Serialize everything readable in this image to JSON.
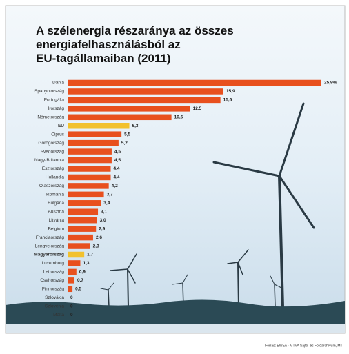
{
  "chart_data": {
    "type": "bar",
    "title": [
      "A szélenergia részaránya az összes",
      "energiafelhasználásból az",
      "EU-tagállamaiban (2011)"
    ],
    "categories": [
      "Dánia",
      "Spanyolország",
      "Portugália",
      "Írország",
      "Németország",
      "EU",
      "Ciprus",
      "Görögország",
      "Svédország",
      "Nagy-Britannia",
      "Észtország",
      "Hollandia",
      "Olaszország",
      "Románia",
      "Bulgária",
      "Ausztria",
      "Litvánia",
      "Belgium",
      "Franciaország",
      "Lengyelország",
      "Magyarország",
      "Luxemburg",
      "Lettország",
      "Csehország",
      "Finnország",
      "Szlovákia",
      "Szlovénia",
      "Málta"
    ],
    "values": [
      25.9,
      15.9,
      15.6,
      12.5,
      10.6,
      6.3,
      5.5,
      5.2,
      4.5,
      4.5,
      4.4,
      4.4,
      4.2,
      3.7,
      3.4,
      3.1,
      3.0,
      2.9,
      2.6,
      2.3,
      1.7,
      1.3,
      0.9,
      0.7,
      0.5,
      0,
      0,
      0
    ],
    "value_labels": [
      "25,9%",
      "15,9",
      "15,6",
      "12,5",
      "10,6",
      "6,3",
      "5,5",
      "5,2",
      "4,5",
      "4,5",
      "4,4",
      "4,4",
      "4,2",
      "3,7",
      "3,4",
      "3,1",
      "3,0",
      "2,9",
      "2,6",
      "2,3",
      "1,7",
      "1,3",
      "0,9",
      "0,7",
      "0,5",
      "0",
      "0",
      "0"
    ],
    "color": "#e8501e",
    "highlight_color": "#f2c12e",
    "highlighted": [
      "EU",
      "Magyarország"
    ],
    "source": "Forrás: EWEA · MTVA Sajtó- és Fotóarchívum, MTI"
  }
}
